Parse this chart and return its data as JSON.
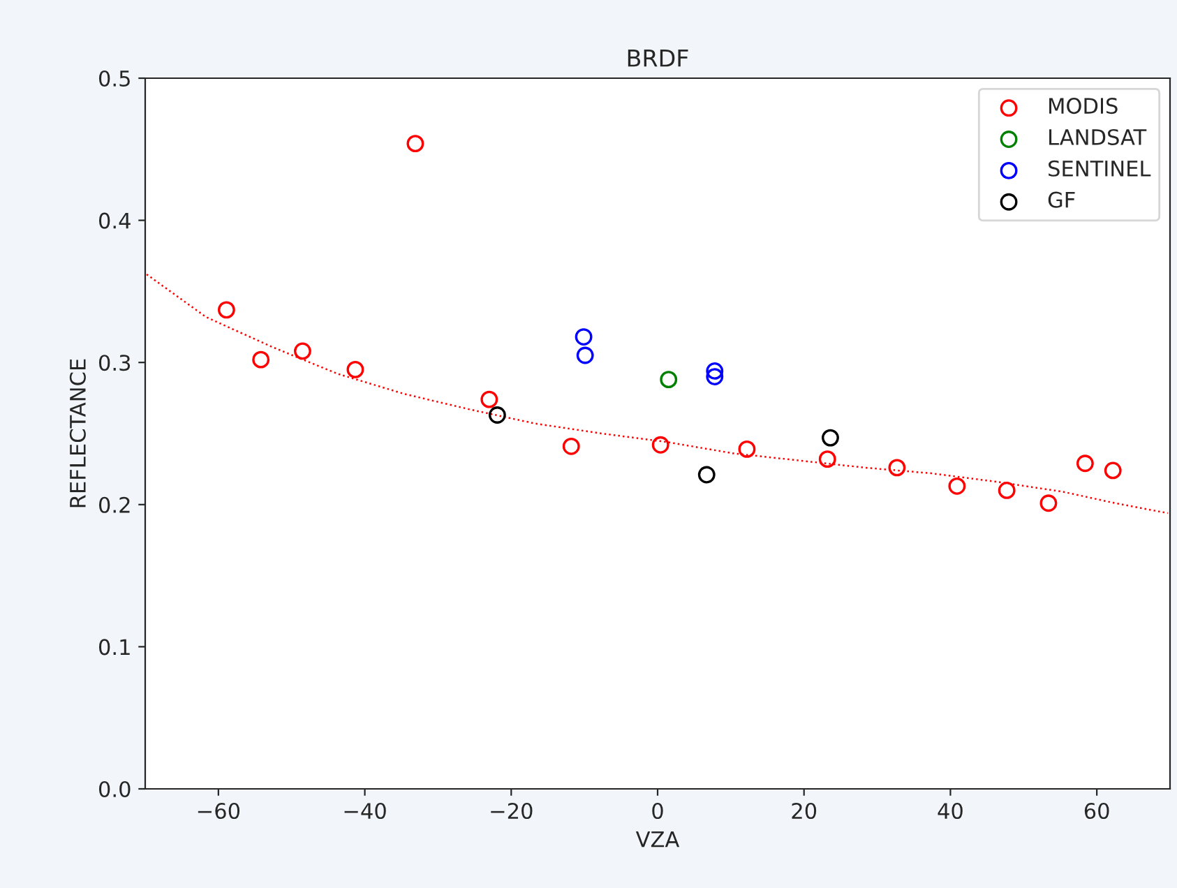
{
  "chart_data": {
    "type": "scatter",
    "title": "BRDF",
    "xlabel": "VZA",
    "ylabel": "REFLECTANCE",
    "xlim": [
      -70,
      70
    ],
    "xticks": [
      {
        "value": -60,
        "label": "−60"
      },
      {
        "value": -40,
        "label": "−40"
      },
      {
        "value": -20,
        "label": "−20"
      },
      0,
      20,
      40,
      60
    ],
    "ylim": [
      0.0,
      0.5
    ],
    "yticks": [
      {
        "value": 0.0,
        "label": "0.0"
      },
      0.1,
      0.2,
      0.3,
      0.4,
      0.5
    ],
    "grid": false,
    "legend": "top right",
    "marker": "circle",
    "series": [
      {
        "name": "MODIS",
        "color": "#ff0000",
        "x": [
          -58.9,
          -54.2,
          -48.5,
          -41.3,
          -33.1,
          -23.0,
          -11.8,
          0.4,
          12.2,
          23.2,
          32.7,
          40.9,
          47.7,
          53.4,
          58.4,
          62.2
        ],
        "values": [
          0.337,
          0.302,
          0.308,
          0.295,
          0.454,
          0.274,
          0.241,
          0.242,
          0.239,
          0.232,
          0.226,
          0.213,
          0.21,
          0.201,
          0.229,
          0.224
        ]
      },
      {
        "name": "LANDSAT",
        "color": "#008000",
        "x": [
          1.5
        ],
        "values": [
          0.288
        ]
      },
      {
        "name": "SENTINEL",
        "color": "#0000ff",
        "x": [
          -10.1,
          -9.9,
          7.8,
          7.8
        ],
        "values": [
          0.318,
          0.305,
          0.294,
          0.29
        ]
      },
      {
        "name": "GF",
        "color": "#000000",
        "x": [
          -21.9,
          6.7,
          23.6
        ],
        "values": [
          0.263,
          0.221,
          0.247
        ]
      },
      {
        "type": "line",
        "color": "#ff0000",
        "line_style": "dotted",
        "marker": "none",
        "x": [
          -69.8,
          -61.7,
          -52.7,
          -43.7,
          -34.7,
          -25.7,
          -16.7,
          -7.6,
          1.3,
          10.4,
          19.4,
          28.3,
          37.4,
          46.4,
          55.4,
          62.5,
          69.7
        ],
        "values": [
          0.362,
          0.332,
          0.311,
          0.292,
          0.278,
          0.267,
          0.257,
          0.25,
          0.244,
          0.236,
          0.231,
          0.226,
          0.222,
          0.216,
          0.209,
          0.201,
          0.194
        ]
      }
    ]
  }
}
